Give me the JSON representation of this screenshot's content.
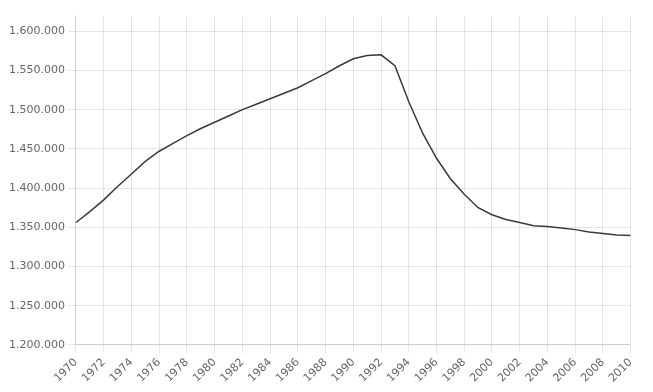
{
  "chart_data": {
    "type": "line",
    "x": [
      1970,
      1971,
      1972,
      1973,
      1974,
      1975,
      1976,
      1977,
      1978,
      1979,
      1980,
      1981,
      1982,
      1983,
      1984,
      1985,
      1986,
      1987,
      1988,
      1989,
      1990,
      1991,
      1992,
      1993,
      1994,
      1995,
      1996,
      1997,
      1998,
      1999,
      2000,
      2001,
      2002,
      2003,
      2004,
      2005,
      2006,
      2007,
      2008,
      2009,
      2010
    ],
    "values": [
      1356079,
      1370000,
      1385000,
      1402000,
      1418000,
      1434000,
      1447000,
      1457000,
      1467000,
      1476000,
      1484000,
      1492000,
      1500000,
      1507000,
      1514000,
      1521000,
      1528000,
      1537000,
      1546000,
      1556000,
      1565000,
      1569000,
      1570000,
      1556000,
      1510000,
      1470000,
      1438000,
      1412000,
      1392000,
      1375000,
      1366000,
      1360000,
      1356000,
      1352000,
      1351000,
      1349000,
      1347000,
      1344000,
      1342000,
      1340000,
      1339662
    ],
    "color": "#3a3a3a",
    "xlim": [
      1970,
      2010
    ],
    "xticks": [
      1970,
      1972,
      1974,
      1976,
      1978,
      1980,
      1982,
      1984,
      1986,
      1988,
      1990,
      1992,
      1994,
      1996,
      1998,
      2000,
      2002,
      2004,
      2006,
      2008,
      2010
    ],
    "ylim": [
      1200000,
      1620000
    ],
    "yticks": [
      {
        "value": 1200000,
        "label": "1.200.000"
      },
      {
        "value": 1250000,
        "label": "1.250.000"
      },
      {
        "value": 1300000,
        "label": "1.300.000"
      },
      {
        "value": 1350000,
        "label": "1.350.000"
      },
      {
        "value": 1400000,
        "label": "1.400.000"
      },
      {
        "value": 1450000,
        "label": "1.450.000"
      },
      {
        "value": 1500000,
        "label": "1.500.000"
      },
      {
        "value": 1550000,
        "label": "1.550.000"
      },
      {
        "value": 1600000,
        "label": "1.600.000"
      }
    ],
    "grid": true
  }
}
